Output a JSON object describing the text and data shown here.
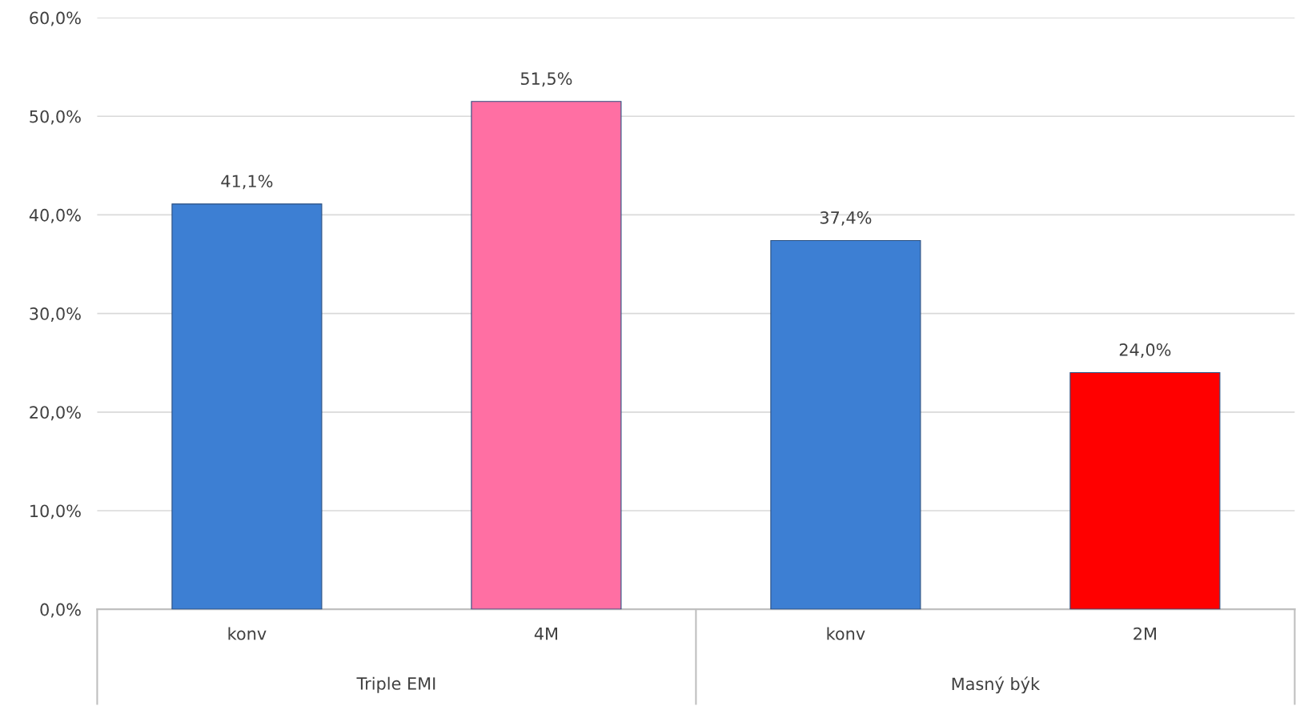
{
  "chart_data": {
    "type": "bar",
    "categories": [
      "konv",
      "4M",
      "konv",
      "2M"
    ],
    "values": [
      41.1,
      51.5,
      37.4,
      24.0
    ],
    "colors": [
      "#3d7fd3",
      "#ff6fa3",
      "#3d7fd3",
      "#ff0000"
    ],
    "value_labels": [
      "41,1%",
      "51,5%",
      "37,4%",
      "24,0%"
    ],
    "annotations": [
      "Triple EMI",
      "Masný býk"
    ],
    "ylim": [
      0,
      60
    ],
    "yticks": [
      {
        "value": 0,
        "label": "0,0%"
      },
      {
        "value": 10,
        "label": "10,0%"
      },
      {
        "value": 20,
        "label": "20,0%"
      },
      {
        "value": 30,
        "label": "30,0%"
      },
      {
        "value": 40,
        "label": "40,0%"
      },
      {
        "value": 50,
        "label": "50,0%"
      },
      {
        "value": 60,
        "label": "60,0%"
      }
    ],
    "grid": "y"
  }
}
